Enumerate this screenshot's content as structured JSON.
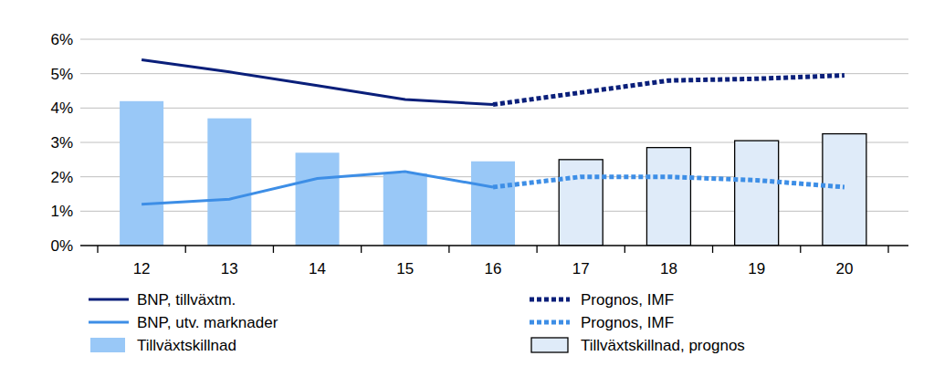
{
  "chart_data": {
    "type": "bar",
    "categories": [
      "12",
      "13",
      "14",
      "15",
      "16",
      "17",
      "18",
      "19",
      "20"
    ],
    "ylim": [
      0,
      6
    ],
    "yticks": [
      {
        "value": 0,
        "label": "0%"
      },
      {
        "value": 1,
        "label": "1%"
      },
      {
        "value": 2,
        "label": "2%"
      },
      {
        "value": 3,
        "label": "3%"
      },
      {
        "value": 4,
        "label": "4%"
      },
      {
        "value": 5,
        "label": "5%"
      },
      {
        "value": 6,
        "label": "6%"
      }
    ],
    "grid": true,
    "series": [
      {
        "name": "BNP, tillväxtm.",
        "type": "line",
        "line_style": "solid",
        "color": "#0a1f7a",
        "values": [
          5.4,
          5.05,
          4.65,
          4.25,
          4.1,
          null,
          null,
          null,
          null
        ]
      },
      {
        "name": "BNP, utv. marknader",
        "type": "line",
        "line_style": "solid",
        "color": "#3d8ee6",
        "values": [
          1.2,
          1.35,
          1.95,
          2.15,
          1.7,
          null,
          null,
          null,
          null
        ]
      },
      {
        "name": "Tillväxtskillnad",
        "type": "bar",
        "color": "#99c8f7",
        "values": [
          4.2,
          3.7,
          2.7,
          2.1,
          2.45,
          null,
          null,
          null,
          null
        ]
      },
      {
        "name": "Prognos, IMF",
        "type": "line",
        "line_style": "dotted",
        "color": "#0a1f7a",
        "values": [
          null,
          null,
          null,
          null,
          4.1,
          4.45,
          4.8,
          4.85,
          4.95
        ]
      },
      {
        "name": "Prognos, IMF",
        "type": "line",
        "line_style": "dotted",
        "color": "#3d8ee6",
        "values": [
          null,
          null,
          null,
          null,
          1.7,
          2.0,
          2.0,
          1.9,
          1.7
        ]
      },
      {
        "name": "Tillväxtskillnad, prognos",
        "type": "bar",
        "color": "#dfebf9",
        "values": [
          null,
          null,
          null,
          null,
          null,
          2.5,
          2.85,
          3.05,
          3.25
        ]
      }
    ]
  }
}
